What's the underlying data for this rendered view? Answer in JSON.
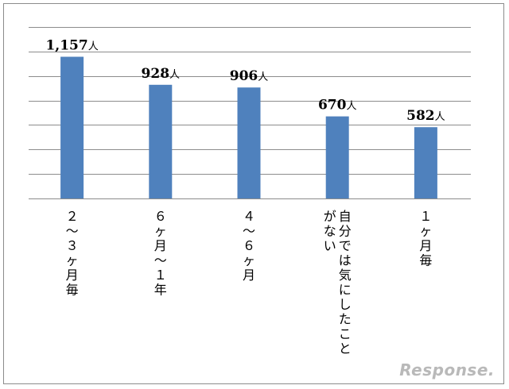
{
  "chart_data": {
    "type": "bar",
    "categories": [
      "２～３ヶ月毎",
      "６ヶ月～１年",
      "４～６ヶ月",
      "自分では気にしたことがない",
      "１ヶ月毎"
    ],
    "category_columns": [
      [
        "２～３ヶ月毎"
      ],
      [
        "６ヶ月～１年"
      ],
      [
        "４～６ヶ月"
      ],
      [
        "自分では気にしたこと",
        "がない"
      ],
      [
        "１ヶ月毎"
      ]
    ],
    "values": [
      1157,
      928,
      906,
      670,
      582
    ],
    "data_labels": [
      "1,157",
      "928",
      "906",
      "670",
      "582"
    ],
    "unit": "人",
    "ylim": [
      0,
      1400
    ],
    "gridlines": true,
    "bar_color": "#4f81bd",
    "title": "",
    "xlabel": "",
    "ylabel": ""
  },
  "watermark": "Response."
}
